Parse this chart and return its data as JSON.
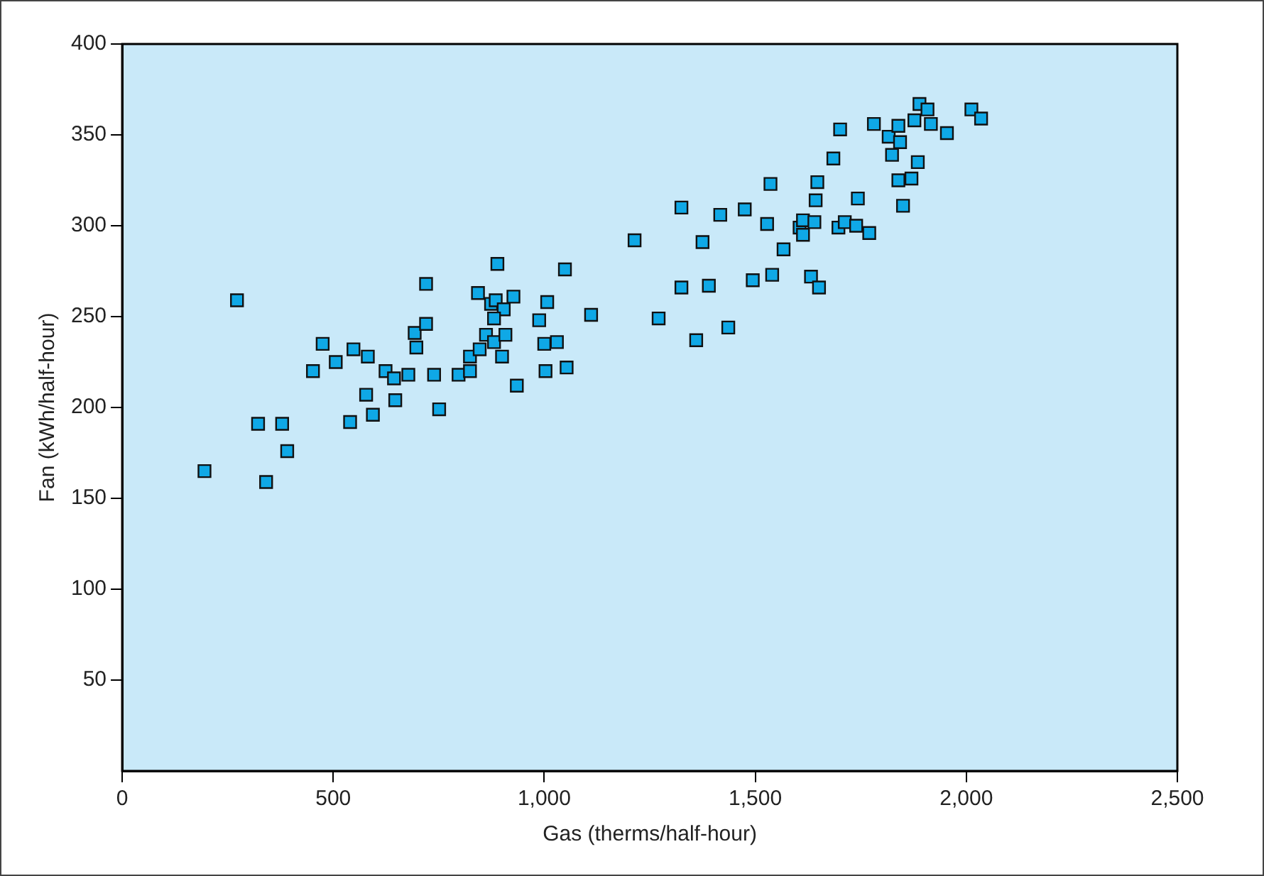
{
  "chart_data": {
    "type": "scatter",
    "xlabel": "Gas (therms/half-hour)",
    "ylabel": "Fan (kWh/half-hour)",
    "xlim": [
      0,
      2500
    ],
    "ylim": [
      0,
      400
    ],
    "xticks": [
      0,
      500,
      {
        "value": 1000,
        "label": "1,000"
      },
      {
        "value": 1500,
        "label": "1,500"
      },
      {
        "value": 2000,
        "label": "2,000"
      },
      {
        "value": 2500,
        "label": "2,500"
      }
    ],
    "yticks": [
      50,
      100,
      150,
      200,
      250,
      300,
      350,
      400
    ],
    "grid": false,
    "marker": "square",
    "legend": false,
    "series": [
      {
        "color": "#0fa8e6",
        "x": [
          195,
          272,
          322,
          379,
          341,
          391,
          452,
          475,
          506,
          548,
          582,
          624,
          644,
          578,
          594,
          540,
          647,
          678,
          697,
          693,
          720,
          720,
          739,
          751,
          797,
          824,
          824,
          847,
          862,
          843,
          874,
          885,
          889,
          904,
          881,
          881,
          908,
          927,
          935,
          900,
          988,
          1000,
          1007,
          1003,
          1030,
          1053,
          1049,
          1111,
          1214,
          1271,
          1325,
          1325,
          1360,
          1375,
          1390,
          1417,
          1436,
          1475,
          1494,
          1528,
          1536,
          1540,
          1567,
          1605,
          1613,
          1613,
          1632,
          1640,
          1643,
          1647,
          1651,
          1685,
          1701,
          1697,
          1712,
          1739,
          1743,
          1770,
          1781,
          1816,
          1824,
          1839,
          1843,
          1839,
          1850,
          1870,
          1885,
          1877,
          1889,
          1908,
          1916,
          1954,
          2012,
          2035
        ],
        "values": [
          165,
          259,
          191,
          191,
          159,
          176,
          220,
          235,
          225,
          232,
          228,
          220,
          216,
          207,
          196,
          192,
          204,
          218,
          233,
          241,
          246,
          268,
          218,
          199,
          218,
          220,
          228,
          232,
          240,
          263,
          257,
          259,
          279,
          254,
          249,
          236,
          240,
          261,
          212,
          228,
          248,
          235,
          258,
          220,
          236,
          222,
          276,
          251,
          292,
          249,
          266,
          310,
          237,
          291,
          267,
          306,
          244,
          309,
          270,
          301,
          323,
          273,
          287,
          299,
          303,
          295,
          272,
          302,
          314,
          324,
          266,
          337,
          353,
          299,
          302,
          300,
          315,
          296,
          356,
          349,
          339,
          355,
          346,
          325,
          311,
          326,
          335,
          358,
          367,
          364,
          356,
          351,
          364,
          359
        ]
      }
    ]
  }
}
